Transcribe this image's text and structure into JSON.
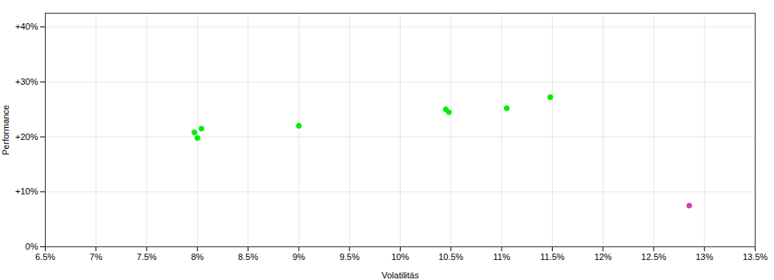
{
  "chart_data": {
    "type": "scatter",
    "xlabel": "Volatilitás",
    "ylabel": "Performance",
    "xlim": [
      0.065,
      0.135
    ],
    "ylim": [
      0.0,
      0.425
    ],
    "xticks": [
      {
        "value": 0.065,
        "label": "6.5%"
      },
      {
        "value": 0.07,
        "label": "7%"
      },
      {
        "value": 0.075,
        "label": "7.5%"
      },
      {
        "value": 0.08,
        "label": "8%"
      },
      {
        "value": 0.085,
        "label": "8.5%"
      },
      {
        "value": 0.09,
        "label": "9%"
      },
      {
        "value": 0.095,
        "label": "9.5%"
      },
      {
        "value": 0.1,
        "label": "10%"
      },
      {
        "value": 0.105,
        "label": "10.5%"
      },
      {
        "value": 0.11,
        "label": "11%"
      },
      {
        "value": 0.115,
        "label": "11.5%"
      },
      {
        "value": 0.12,
        "label": "12%"
      },
      {
        "value": 0.125,
        "label": "12.5%"
      },
      {
        "value": 0.13,
        "label": "13%"
      },
      {
        "value": 0.135,
        "label": "13.5%"
      }
    ],
    "yticks": [
      {
        "value": 0.0,
        "label": "0%"
      },
      {
        "value": 0.1,
        "label": "+10%"
      },
      {
        "value": 0.2,
        "label": "+20%"
      },
      {
        "value": 0.3,
        "label": "+30%"
      },
      {
        "value": 0.4,
        "label": "+40%"
      }
    ],
    "grid": true,
    "series": [
      {
        "color": "#00ee00",
        "x": [
          0.0797,
          0.0804,
          0.08,
          0.09,
          0.1045,
          0.1048,
          0.1105,
          0.1148
        ],
        "values": [
          0.208,
          0.215,
          0.198,
          0.22,
          0.25,
          0.245,
          0.252,
          0.272
        ]
      },
      {
        "color": "#cc44aa",
        "x": [
          0.1285
        ],
        "values": [
          0.075
        ]
      }
    ]
  }
}
